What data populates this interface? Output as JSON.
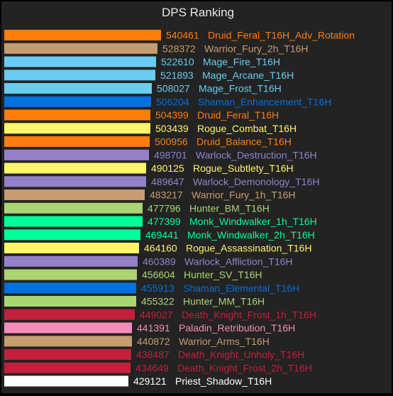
{
  "chart_data": {
    "type": "bar",
    "orientation": "horizontal",
    "title": "DPS Ranking",
    "grid": false,
    "legend": "none",
    "xlim": [
      0,
      540461
    ],
    "background_color": "#232323",
    "bars": [
      {
        "value": 540461,
        "name": "Druid_Feral_T16H_Adv_Rotation",
        "color": "#ff7d0a"
      },
      {
        "value": 528372,
        "name": "Warrior_Fury_2h_T16H",
        "color": "#c79c6e"
      },
      {
        "value": 522610,
        "name": "Mage_Fire_T16H",
        "color": "#69ccf0"
      },
      {
        "value": 521893,
        "name": "Mage_Arcane_T16H",
        "color": "#69ccf0"
      },
      {
        "value": 508027,
        "name": "Mage_Frost_T16H",
        "color": "#69ccf0"
      },
      {
        "value": 506204,
        "name": "Shaman_Enhancement_T16H",
        "color": "#0070de"
      },
      {
        "value": 504399,
        "name": "Druid_Feral_T16H",
        "color": "#ff7d0a"
      },
      {
        "value": 503439,
        "name": "Rogue_Combat_T16H",
        "color": "#fff569"
      },
      {
        "value": 500956,
        "name": "Druid_Balance_T16H",
        "color": "#ff7d0a"
      },
      {
        "value": 498701,
        "name": "Warlock_Destruction_T16H",
        "color": "#9482c9"
      },
      {
        "value": 490125,
        "name": "Rogue_Subtlety_T16H",
        "color": "#fff569"
      },
      {
        "value": 489647,
        "name": "Warlock_Demonology_T16H",
        "color": "#9482c9"
      },
      {
        "value": 483217,
        "name": "Warrior_Fury_1h_T16H",
        "color": "#c79c6e"
      },
      {
        "value": 477796,
        "name": "Hunter_BM_T16H",
        "color": "#abd473"
      },
      {
        "value": 477399,
        "name": "Monk_Windwalker_1h_T16H",
        "color": "#00ff96"
      },
      {
        "value": 469441,
        "name": "Monk_Windwalker_2h_T16H",
        "color": "#00ff96"
      },
      {
        "value": 464160,
        "name": "Rogue_Assassination_T16H",
        "color": "#fff569"
      },
      {
        "value": 460389,
        "name": "Warlock_Affliction_T16H",
        "color": "#9482c9"
      },
      {
        "value": 456604,
        "name": "Hunter_SV_T16H",
        "color": "#abd473"
      },
      {
        "value": 455913,
        "name": "Shaman_Elemental_T16H",
        "color": "#0070de"
      },
      {
        "value": 455322,
        "name": "Hunter_MM_T16H",
        "color": "#abd473"
      },
      {
        "value": 449027,
        "name": "Death_Knight_Frost_1h_T16H",
        "color": "#c41f3b"
      },
      {
        "value": 441391,
        "name": "Paladin_Retribution_T16H",
        "color": "#f58cba"
      },
      {
        "value": 440872,
        "name": "Warrior_Arms_T16H",
        "color": "#c79c6e"
      },
      {
        "value": 438487,
        "name": "Death_Knight_Unholy_T16H",
        "color": "#c41f3b"
      },
      {
        "value": 434649,
        "name": "Death_Knight_Frost_2h_T16H",
        "color": "#c41f3b"
      },
      {
        "value": 429121,
        "name": "Priest_Shadow_T16H",
        "color": "#ffffff"
      }
    ]
  }
}
